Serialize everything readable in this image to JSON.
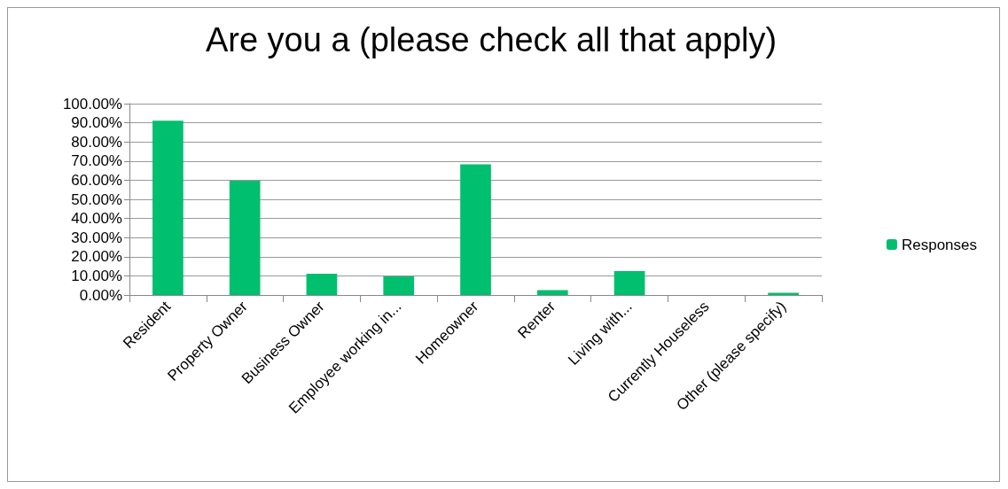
{
  "chart_data": {
    "type": "bar",
    "title": "Are you a (please check all that apply)",
    "categories": [
      "Resident",
      "Property Owner",
      "Business Owner",
      "Employee working in...",
      "Homeowner",
      "Renter",
      "Living with...",
      "Currently Houseless",
      "Other (please specify)"
    ],
    "series": [
      {
        "name": "Responses",
        "color": "#00bf6f",
        "values": [
          91.1,
          59.7,
          11.1,
          9.7,
          68.3,
          2.5,
          12.5,
          0,
          1.1
        ]
      }
    ],
    "ylim": [
      0,
      100
    ],
    "yticks": [
      {
        "value": 0,
        "label": "0.00%"
      },
      {
        "value": 10,
        "label": "10.00%"
      },
      {
        "value": 20,
        "label": "20.00%"
      },
      {
        "value": 30,
        "label": "30.00%"
      },
      {
        "value": 40,
        "label": "40.00%"
      },
      {
        "value": 50,
        "label": "50.00%"
      },
      {
        "value": 60,
        "label": "60.00%"
      },
      {
        "value": 70,
        "label": "70.00%"
      },
      {
        "value": 80,
        "label": "80.00%"
      },
      {
        "value": 90,
        "label": "90.00%"
      },
      {
        "value": 100,
        "label": "100.00%"
      }
    ],
    "grid": "y",
    "legend": "right"
  }
}
